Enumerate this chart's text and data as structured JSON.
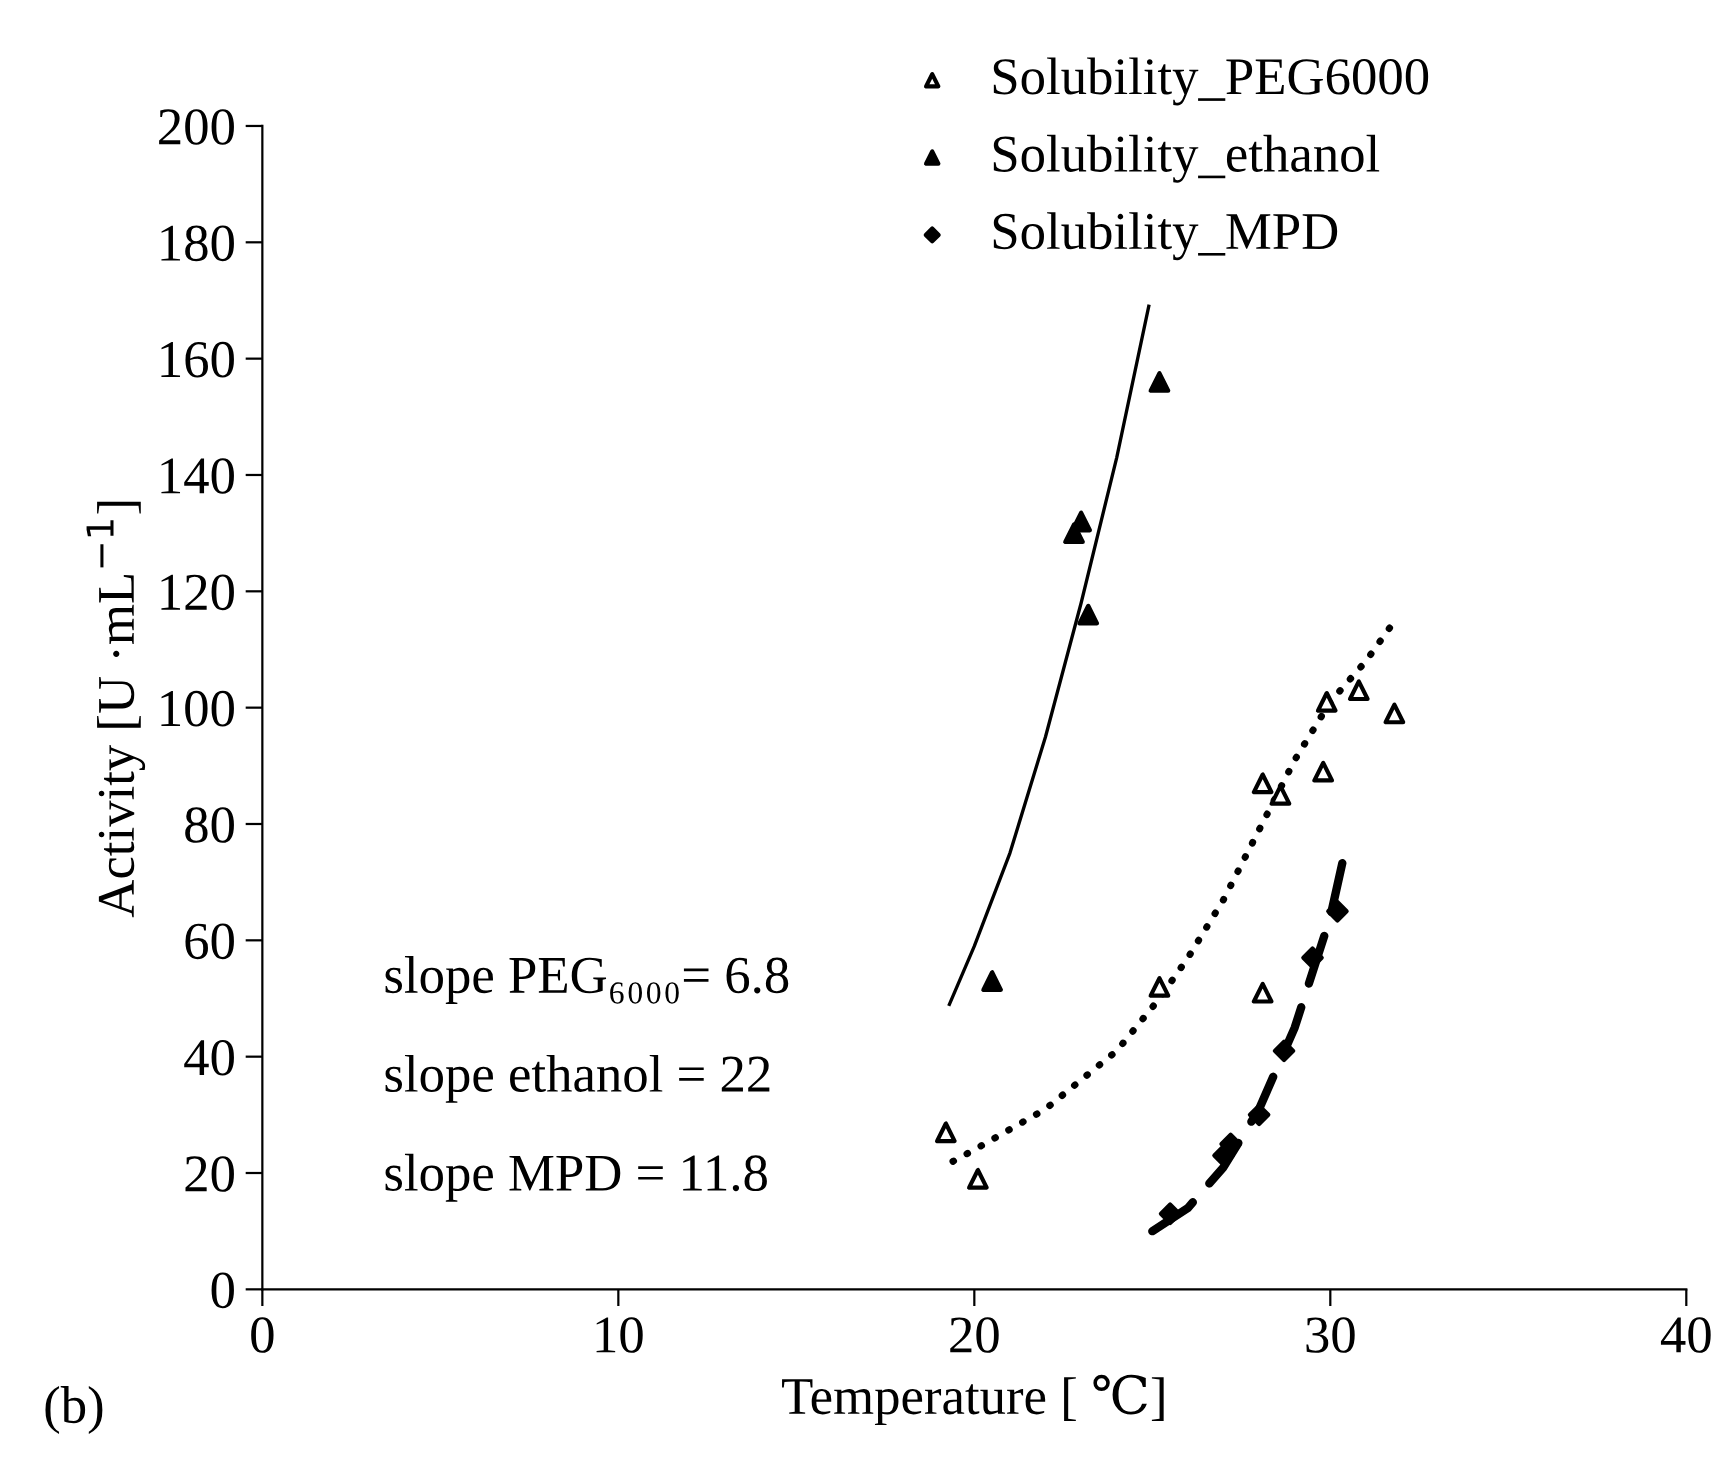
{
  "chart_data": {
    "type": "scatter",
    "xlabel": "Temperature [ ℃]",
    "ylabel": "Activity [U ·mL$^{−1}$]",
    "xlim": [
      0,
      40
    ],
    "xticks": [
      0,
      10,
      20,
      30,
      40
    ],
    "ylim": [
      0,
      200
    ],
    "yticks": [
      0,
      20,
      40,
      60,
      80,
      100,
      120,
      140,
      160,
      180,
      200
    ],
    "grid": false,
    "legend": "top",
    "series": [
      {
        "name": "Solubility_PEG6000",
        "marker": "triangle",
        "color": "#ffffff",
        "x": [
          19.2,
          20.1,
          25.2,
          28.1,
          28.6,
          28.1,
          29.8,
          29.9,
          30.8,
          31.8
        ],
        "values": [
          27,
          19,
          52,
          87,
          85,
          51,
          89,
          101,
          103,
          99
        ]
      },
      {
        "name": "Solubility_ethanol",
        "marker": "triangle",
        "color": "#000000",
        "x": [
          20.5,
          22.8,
          23.0,
          23.2,
          25.2
        ],
        "values": [
          53,
          130,
          132,
          116,
          156
        ]
      },
      {
        "name": "Solubility_MPD",
        "marker": "diamond",
        "color": "#000000",
        "x": [
          25.5,
          27.0,
          27.2,
          28.0,
          28.7,
          29.5,
          30.2
        ],
        "values": [
          13,
          23,
          25,
          30,
          41,
          57,
          65
        ]
      },
      {
        "type": "line",
        "line_style": "solid",
        "color": "#000000",
        "x": [
          19.3,
          20,
          21,
          22,
          23,
          24,
          24.9
        ],
        "values": [
          49,
          59,
          75,
          95,
          118,
          143,
          169
        ]
      },
      {
        "type": "line",
        "line_style": "dotted",
        "color": "#000000",
        "x": [
          19.4,
          20,
          22,
          24,
          25.2,
          26,
          27,
          28,
          29,
          30,
          31,
          31.7
        ],
        "values": [
          22,
          24,
          31,
          41,
          50,
          57,
          67,
          79,
          91,
          101,
          108,
          114
        ]
      },
      {
        "type": "line",
        "line_style": "dashed",
        "color": "#000000",
        "x": [
          25,
          26,
          27,
          28,
          29,
          30,
          30.4
        ],
        "values": [
          10,
          14,
          21,
          31,
          45,
          64,
          75
        ]
      }
    ],
    "annotations": [
      "slope PEG₆₀₀₀= 6.8",
      "slope ethanol = 22",
      "slope MPD = 11.8",
      "(b)"
    ]
  }
}
